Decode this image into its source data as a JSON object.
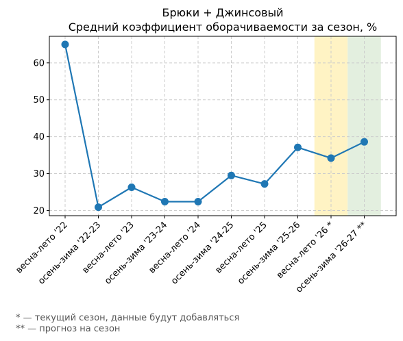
{
  "chart_data": {
    "type": "line",
    "title": "Брюки + Джинсовый",
    "subtitle": "Средний коэффициент оборачиваемости за сезон, %",
    "xlabel": "",
    "ylabel": "",
    "categories": [
      "весна-лето '22",
      "осень-зима '22-23",
      "весна-лето '23",
      "осень-зима '23-24",
      "весна-лето '24",
      "осень-зима '24-25",
      "весна-лето '25",
      "осень-зима '25-26",
      "весна-лето '26 *",
      "осень-зима '26-27 **"
    ],
    "series": [
      {
        "values": [
          65.0,
          20.9,
          26.3,
          22.4,
          22.4,
          29.5,
          27.2,
          37.1,
          34.2,
          38.6
        ],
        "color": "#1f77b4"
      }
    ],
    "ylim": [
      18.6,
      67.2
    ],
    "yticks": [
      20,
      30,
      40,
      50,
      60
    ],
    "grid": true,
    "highlights": [
      {
        "category": "весна-лето '26 *",
        "color": "#fff3c4"
      },
      {
        "category": "осень-зима '26-27 **",
        "color": "#e3efdf"
      }
    ]
  },
  "footnotes": [
    "* — текущий сезон, данные будут добавляться",
    "** — прогноз на сезон"
  ]
}
